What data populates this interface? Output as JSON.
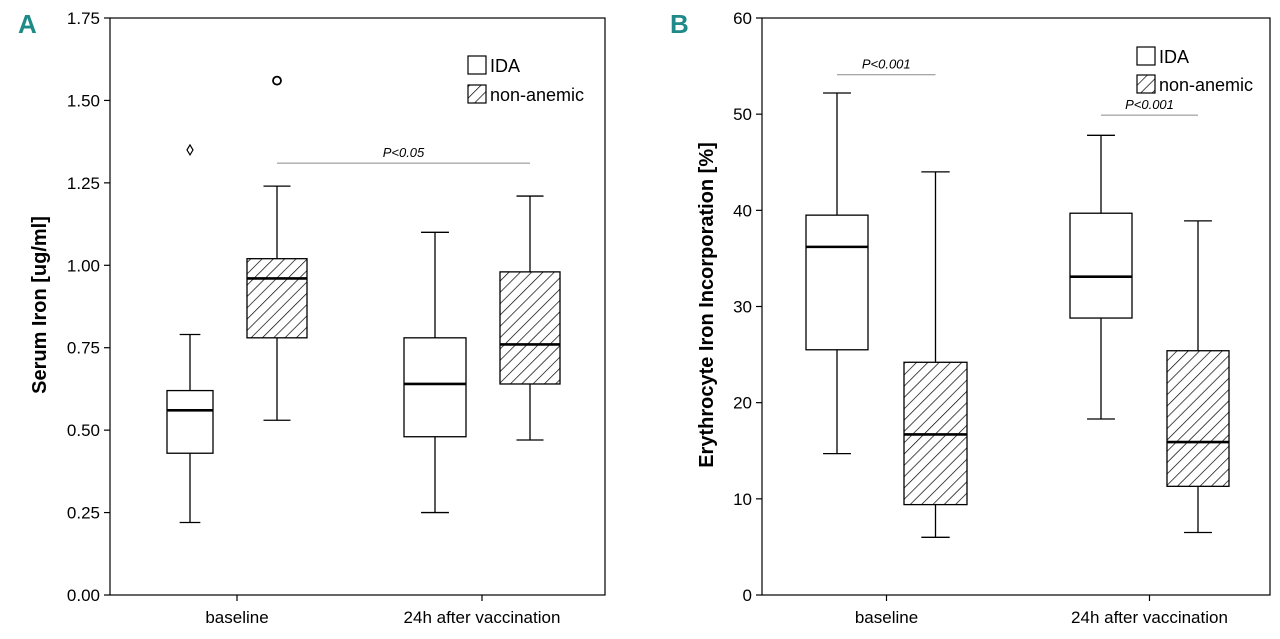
{
  "colors": {
    "accent": "#1f8a88",
    "ink": "#000000",
    "guide": "#8a8a8a"
  },
  "chart_data": [
    {
      "type": "box",
      "panel_label": "A",
      "ylabel": "Serum Iron [ug/ml]",
      "xlabel": "",
      "ylim": [
        0,
        1.75
      ],
      "yticks": [
        "0.00",
        "0.25",
        "0.50",
        "0.75",
        "1.00",
        "1.25",
        "1.50",
        "1.75"
      ],
      "categories": [
        "baseline",
        "24h after vaccination"
      ],
      "legend": [
        {
          "label": "IDA",
          "pattern": "open"
        },
        {
          "label": "non-anemic",
          "pattern": "hatched"
        }
      ],
      "series": [
        {
          "name": "IDA",
          "boxes": [
            {
              "whisker_low": 0.22,
              "q1": 0.43,
              "median": 0.56,
              "q3": 0.62,
              "whisker_high": 0.79,
              "outliers": [
                1.35
              ],
              "outlier_marker": "diamond"
            },
            {
              "whisker_low": 0.25,
              "q1": 0.48,
              "median": 0.64,
              "q3": 0.78,
              "whisker_high": 1.1,
              "outliers": []
            }
          ]
        },
        {
          "name": "non-anemic",
          "boxes": [
            {
              "whisker_low": 0.53,
              "q1": 0.78,
              "median": 0.96,
              "q3": 1.02,
              "whisker_high": 1.24,
              "outliers": [
                1.56
              ],
              "outlier_marker": "circle"
            },
            {
              "whisker_low": 0.47,
              "q1": 0.64,
              "median": 0.76,
              "q3": 0.98,
              "whisker_high": 1.21,
              "outliers": []
            }
          ]
        }
      ],
      "annotations": [
        {
          "text": "P<0.05",
          "from": {
            "category": 0,
            "series": 1
          },
          "to": {
            "category": 1,
            "series": 1
          },
          "y": 1.31
        }
      ]
    },
    {
      "type": "box",
      "panel_label": "B",
      "ylabel": "Erythrocyte Iron Incorporation [%]",
      "xlabel": "",
      "ylim": [
        0,
        60
      ],
      "yticks": [
        "0",
        "10",
        "20",
        "30",
        "40",
        "50",
        "60"
      ],
      "categories": [
        "baseline",
        "24h after vaccination"
      ],
      "legend": [
        {
          "label": "IDA",
          "pattern": "open"
        },
        {
          "label": "non-anemic",
          "pattern": "hatched"
        }
      ],
      "series": [
        {
          "name": "IDA",
          "boxes": [
            {
              "whisker_low": 14.7,
              "q1": 25.5,
              "median": 36.2,
              "q3": 39.5,
              "whisker_high": 52.2,
              "outliers": []
            },
            {
              "whisker_low": 18.3,
              "q1": 28.8,
              "median": 33.1,
              "q3": 39.7,
              "whisker_high": 47.8,
              "outliers": []
            }
          ]
        },
        {
          "name": "non-anemic",
          "boxes": [
            {
              "whisker_low": 6.0,
              "q1": 9.4,
              "median": 16.7,
              "q3": 24.2,
              "whisker_high": 44.0,
              "outliers": []
            },
            {
              "whisker_low": 6.5,
              "q1": 11.3,
              "median": 15.9,
              "q3": 25.4,
              "whisker_high": 38.9,
              "outliers": []
            }
          ]
        }
      ],
      "annotations": [
        {
          "text": "P<0.001",
          "from": {
            "category": 0,
            "series": 0
          },
          "to": {
            "category": 0,
            "series": 1
          },
          "y": 54.1
        },
        {
          "text": "P<0.001",
          "from": {
            "category": 1,
            "series": 0
          },
          "to": {
            "category": 1,
            "series": 1
          },
          "y": 49.9
        }
      ]
    }
  ]
}
